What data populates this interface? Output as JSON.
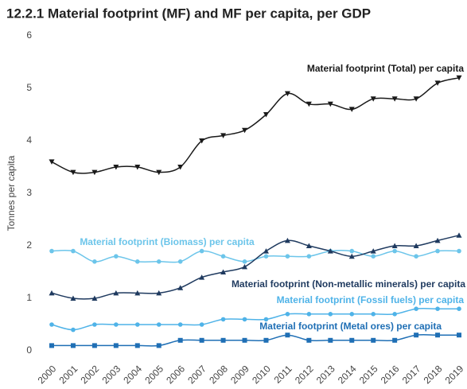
{
  "chart_data": {
    "type": "line",
    "title": "12.2.1 Material footprint (MF) and MF per capita, per GDP",
    "y_label": "Tonnes per capita",
    "categories": [
      "2000",
      "2001",
      "2002",
      "2003",
      "2004",
      "2005",
      "2006",
      "2007",
      "2008",
      "2009",
      "2010",
      "2011",
      "2012",
      "2013",
      "2014",
      "2015",
      "2016",
      "2017",
      "2018",
      "2019"
    ],
    "ylim": [
      0,
      6
    ],
    "yticks": [
      0,
      1,
      2,
      3,
      4,
      5,
      6
    ],
    "grid": false,
    "legend": "direct-labels",
    "series": [
      {
        "name": "Material footprint (Total) per capita",
        "color": "#1a1a1a",
        "marker": "triangle-down",
        "values": [
          3.6,
          3.4,
          3.4,
          3.5,
          3.5,
          3.4,
          3.5,
          4.0,
          4.1,
          4.2,
          4.5,
          4.9,
          4.7,
          4.7,
          4.6,
          4.8,
          4.8,
          4.8,
          5.1,
          5.2
        ]
      },
      {
        "name": "Material footprint (Biomass) per capita",
        "color": "#6cc5ea",
        "marker": "circle",
        "values": [
          1.9,
          1.9,
          1.7,
          1.8,
          1.7,
          1.7,
          1.7,
          1.9,
          1.8,
          1.7,
          1.8,
          1.8,
          1.8,
          1.9,
          1.9,
          1.8,
          1.9,
          1.8,
          1.9,
          1.9
        ]
      },
      {
        "name": "Material footprint (Non-metallic minerals) per capita",
        "color": "#1f3a5f",
        "marker": "triangle-up",
        "values": [
          1.1,
          1.0,
          1.0,
          1.1,
          1.1,
          1.1,
          1.2,
          1.4,
          1.5,
          1.6,
          1.9,
          2.1,
          2.0,
          1.9,
          1.8,
          1.9,
          2.0,
          2.0,
          2.1,
          2.2
        ]
      },
      {
        "name": "Material footprint (Fossil fuels) per capita",
        "color": "#4fb3e8",
        "marker": "circle",
        "values": [
          0.5,
          0.4,
          0.5,
          0.5,
          0.5,
          0.5,
          0.5,
          0.5,
          0.6,
          0.6,
          0.6,
          0.7,
          0.7,
          0.7,
          0.7,
          0.7,
          0.7,
          0.8,
          0.8,
          0.8
        ]
      },
      {
        "name": "Material footprint (Metal ores) per capita",
        "color": "#1f6fb5",
        "marker": "square",
        "values": [
          0.1,
          0.1,
          0.1,
          0.1,
          0.1,
          0.1,
          0.2,
          0.2,
          0.2,
          0.2,
          0.2,
          0.3,
          0.2,
          0.2,
          0.2,
          0.2,
          0.2,
          0.3,
          0.3,
          0.3
        ]
      }
    ]
  }
}
